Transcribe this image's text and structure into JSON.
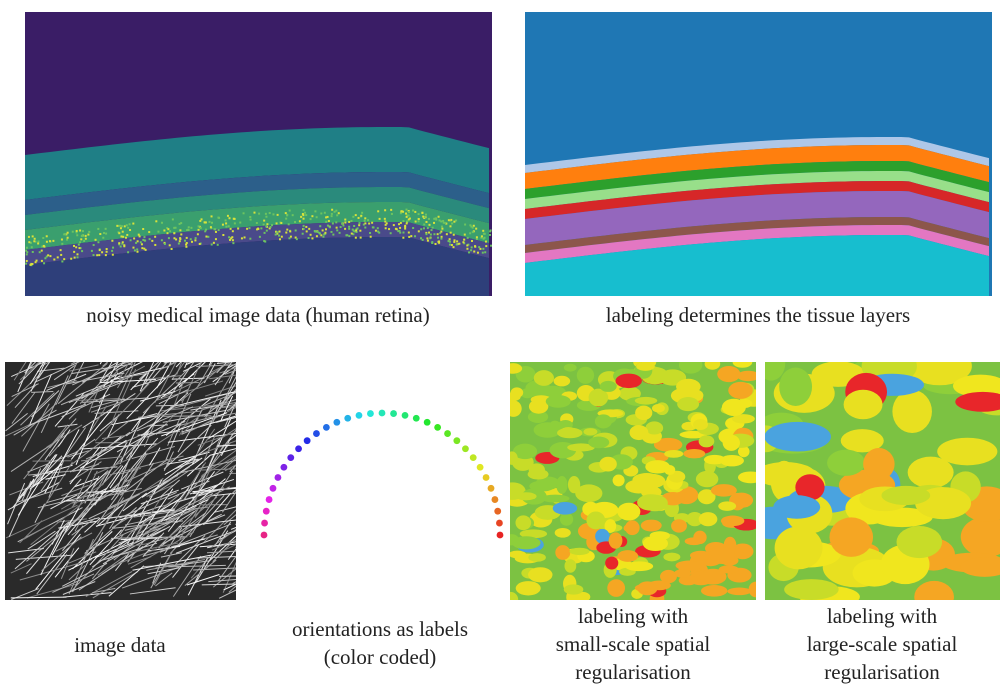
{
  "panels": [
    {
      "caption": [
        "noisy medical image data (human retina)"
      ]
    },
    {
      "caption": [
        "labeling determines the tissue layers"
      ]
    },
    {
      "caption": [
        "image data"
      ]
    },
    {
      "caption": [
        "orientations as labels",
        "(color coded)"
      ]
    },
    {
      "caption": [
        "labeling with",
        "small-scale spatial",
        "regularisation"
      ]
    },
    {
      "caption": [
        "labeling with",
        "large-scale spatial",
        "regularisation"
      ]
    }
  ]
}
